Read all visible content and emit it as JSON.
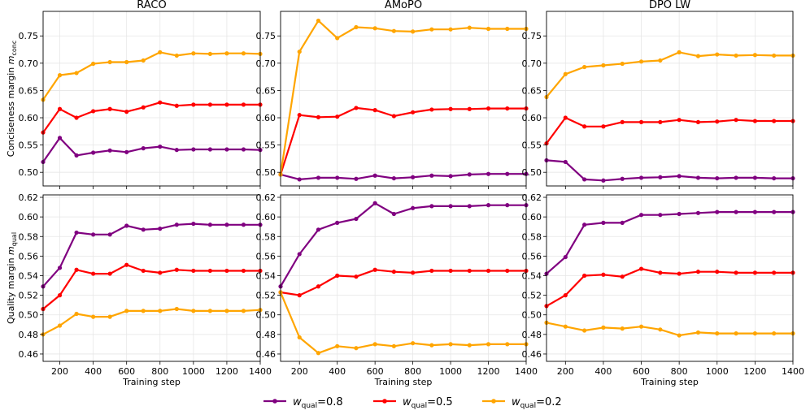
{
  "legend": {
    "items": [
      {
        "base": "w",
        "sub": "qual",
        "value": "=0.8",
        "color": "#800080"
      },
      {
        "base": "w",
        "sub": "qual",
        "value": "=0.5",
        "color": "#ff0000"
      },
      {
        "base": "w",
        "sub": "qual",
        "value": "=0.2",
        "color": "#ffa500"
      }
    ]
  },
  "chart_data": [
    {
      "type": "line",
      "title": "RACO",
      "xlabel": "",
      "ylabel": "Conciseness margin m",
      "ylabel_sub": "conc",
      "xlim": [
        100,
        1400
      ],
      "ylim": [
        0.475,
        0.795
      ],
      "xticks": [
        200,
        400,
        600,
        800,
        1000,
        1200,
        1400
      ],
      "yticks": [
        0.5,
        0.55,
        0.6,
        0.65,
        0.7,
        0.75
      ],
      "x": [
        100,
        200,
        300,
        400,
        500,
        600,
        700,
        800,
        900,
        1000,
        1100,
        1200,
        1300,
        1400
      ],
      "series": [
        {
          "color": "#800080",
          "values": [
            0.519,
            0.563,
            0.531,
            0.536,
            0.54,
            0.537,
            0.544,
            0.547,
            0.541,
            0.542,
            0.542,
            0.542,
            0.542,
            0.541
          ]
        },
        {
          "color": "#ff0000",
          "values": [
            0.573,
            0.616,
            0.6,
            0.612,
            0.616,
            0.611,
            0.619,
            0.628,
            0.622,
            0.624,
            0.624,
            0.624,
            0.624,
            0.624
          ]
        },
        {
          "color": "#ffa500",
          "values": [
            0.633,
            0.678,
            0.682,
            0.699,
            0.702,
            0.702,
            0.705,
            0.72,
            0.714,
            0.718,
            0.717,
            0.718,
            0.718,
            0.717
          ]
        }
      ]
    },
    {
      "type": "line",
      "title": "AMoPO",
      "xlabel": "",
      "ylabel": "",
      "ylabel_sub": "",
      "xlim": [
        100,
        1400
      ],
      "ylim": [
        0.475,
        0.795
      ],
      "xticks": [
        200,
        400,
        600,
        800,
        1000,
        1200,
        1400
      ],
      "yticks": [
        0.5,
        0.55,
        0.6,
        0.65,
        0.7,
        0.75
      ],
      "x": [
        100,
        200,
        300,
        400,
        500,
        600,
        700,
        800,
        900,
        1000,
        1100,
        1200,
        1300,
        1400
      ],
      "series": [
        {
          "color": "#800080",
          "values": [
            0.496,
            0.487,
            0.49,
            0.49,
            0.488,
            0.494,
            0.489,
            0.491,
            0.494,
            0.493,
            0.496,
            0.497,
            0.497,
            0.497
          ]
        },
        {
          "color": "#ff0000",
          "values": [
            0.496,
            0.605,
            0.601,
            0.602,
            0.618,
            0.614,
            0.603,
            0.61,
            0.615,
            0.616,
            0.616,
            0.617,
            0.617,
            0.617
          ]
        },
        {
          "color": "#ffa500",
          "values": [
            0.496,
            0.721,
            0.778,
            0.746,
            0.766,
            0.764,
            0.759,
            0.758,
            0.762,
            0.762,
            0.765,
            0.763,
            0.763,
            0.763
          ]
        }
      ]
    },
    {
      "type": "line",
      "title": "DPO LW",
      "xlabel": "",
      "ylabel": "",
      "ylabel_sub": "",
      "xlim": [
        100,
        1400
      ],
      "ylim": [
        0.475,
        0.795
      ],
      "xticks": [
        200,
        400,
        600,
        800,
        1000,
        1200,
        1400
      ],
      "yticks": [
        0.5,
        0.55,
        0.6,
        0.65,
        0.7,
        0.75
      ],
      "x": [
        100,
        200,
        300,
        400,
        500,
        600,
        700,
        800,
        900,
        1000,
        1100,
        1200,
        1300,
        1400
      ],
      "series": [
        {
          "color": "#800080",
          "values": [
            0.522,
            0.519,
            0.487,
            0.485,
            0.488,
            0.49,
            0.491,
            0.493,
            0.49,
            0.489,
            0.49,
            0.49,
            0.489,
            0.489
          ]
        },
        {
          "color": "#ff0000",
          "values": [
            0.553,
            0.6,
            0.584,
            0.584,
            0.592,
            0.592,
            0.592,
            0.596,
            0.592,
            0.593,
            0.596,
            0.594,
            0.594,
            0.594
          ]
        },
        {
          "color": "#ffa500",
          "values": [
            0.638,
            0.68,
            0.693,
            0.696,
            0.699,
            0.703,
            0.705,
            0.72,
            0.713,
            0.716,
            0.714,
            0.715,
            0.714,
            0.714
          ]
        }
      ]
    },
    {
      "type": "line",
      "title": "",
      "xlabel": "Training step",
      "ylabel": "Quality margin m",
      "ylabel_sub": "qual",
      "xlim": [
        100,
        1400
      ],
      "ylim": [
        0.4525,
        0.6225
      ],
      "xticks": [
        200,
        400,
        600,
        800,
        1000,
        1200,
        1400
      ],
      "yticks": [
        0.46,
        0.48,
        0.5,
        0.52,
        0.54,
        0.56,
        0.58,
        0.6,
        0.62
      ],
      "x": [
        100,
        200,
        300,
        400,
        500,
        600,
        700,
        800,
        900,
        1000,
        1100,
        1200,
        1300,
        1400
      ],
      "series": [
        {
          "color": "#800080",
          "values": [
            0.529,
            0.548,
            0.584,
            0.582,
            0.582,
            0.591,
            0.587,
            0.588,
            0.592,
            0.593,
            0.592,
            0.592,
            0.592,
            0.592
          ]
        },
        {
          "color": "#ff0000",
          "values": [
            0.506,
            0.52,
            0.546,
            0.542,
            0.542,
            0.551,
            0.545,
            0.543,
            0.546,
            0.545,
            0.545,
            0.545,
            0.545,
            0.545
          ]
        },
        {
          "color": "#ffa500",
          "values": [
            0.48,
            0.489,
            0.501,
            0.498,
            0.498,
            0.504,
            0.504,
            0.504,
            0.506,
            0.504,
            0.504,
            0.504,
            0.504,
            0.505
          ]
        }
      ]
    },
    {
      "type": "line",
      "title": "",
      "xlabel": "Training step",
      "ylabel": "",
      "ylabel_sub": "",
      "xlim": [
        100,
        1400
      ],
      "ylim": [
        0.4525,
        0.6225
      ],
      "xticks": [
        200,
        400,
        600,
        800,
        1000,
        1200,
        1400
      ],
      "yticks": [
        0.46,
        0.48,
        0.5,
        0.52,
        0.54,
        0.56,
        0.58,
        0.6,
        0.62
      ],
      "x": [
        100,
        200,
        300,
        400,
        500,
        600,
        700,
        800,
        900,
        1000,
        1100,
        1200,
        1300,
        1400
      ],
      "series": [
        {
          "color": "#800080",
          "values": [
            0.529,
            0.562,
            0.587,
            0.594,
            0.598,
            0.614,
            0.603,
            0.609,
            0.611,
            0.611,
            0.611,
            0.612,
            0.612,
            0.612
          ]
        },
        {
          "color": "#ff0000",
          "values": [
            0.523,
            0.52,
            0.529,
            0.54,
            0.539,
            0.546,
            0.544,
            0.543,
            0.545,
            0.545,
            0.545,
            0.545,
            0.545,
            0.545
          ]
        },
        {
          "color": "#ffa500",
          "values": [
            0.523,
            0.477,
            0.461,
            0.468,
            0.466,
            0.47,
            0.468,
            0.471,
            0.469,
            0.47,
            0.469,
            0.47,
            0.47,
            0.47
          ]
        }
      ]
    },
    {
      "type": "line",
      "title": "",
      "xlabel": "Training step",
      "ylabel": "",
      "ylabel_sub": "",
      "xlim": [
        100,
        1400
      ],
      "ylim": [
        0.4525,
        0.6225
      ],
      "xticks": [
        200,
        400,
        600,
        800,
        1000,
        1200,
        1400
      ],
      "yticks": [
        0.46,
        0.48,
        0.5,
        0.52,
        0.54,
        0.56,
        0.58,
        0.6,
        0.62
      ],
      "x": [
        100,
        200,
        300,
        400,
        500,
        600,
        700,
        800,
        900,
        1000,
        1100,
        1200,
        1300,
        1400
      ],
      "series": [
        {
          "color": "#800080",
          "values": [
            0.542,
            0.559,
            0.592,
            0.594,
            0.594,
            0.602,
            0.602,
            0.603,
            0.604,
            0.605,
            0.605,
            0.605,
            0.605,
            0.605
          ]
        },
        {
          "color": "#ff0000",
          "values": [
            0.509,
            0.52,
            0.54,
            0.541,
            0.539,
            0.547,
            0.543,
            0.542,
            0.544,
            0.544,
            0.543,
            0.543,
            0.543,
            0.543
          ]
        },
        {
          "color": "#ffa500",
          "values": [
            0.492,
            0.488,
            0.484,
            0.487,
            0.486,
            0.488,
            0.485,
            0.479,
            0.482,
            0.481,
            0.481,
            0.481,
            0.481,
            0.481
          ]
        }
      ]
    }
  ]
}
